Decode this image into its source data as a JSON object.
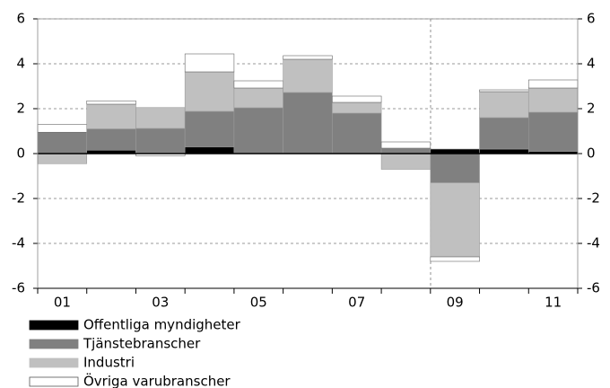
{
  "chart_data": {
    "type": "bar",
    "stacked": true,
    "categories": [
      "01",
      null,
      "03",
      null,
      "05",
      null,
      "07",
      null,
      "09",
      null,
      "11"
    ],
    "series": [
      {
        "name": "Offentliga myndigheter",
        "color": "#000000",
        "values": [
          0,
          0.15,
          0,
          0.3,
          0,
          0,
          0,
          0,
          0.2,
          0.2,
          0.1
        ]
      },
      {
        "name": "Tjänstebranscher",
        "color": "#808080",
        "values": [
          0.95,
          0.95,
          1.12,
          1.58,
          2.04,
          2.72,
          1.8,
          0.24,
          -1.3,
          1.4,
          1.74
        ]
      },
      {
        "name": "Industri",
        "color": "#c0c0c0",
        "values": [
          -0.45,
          1.1,
          0.93,
          1.76,
          0.88,
          1.48,
          0.48,
          -0.7,
          -3.3,
          1.16,
          1.08
        ]
      },
      {
        "name": "Övriga varubranscher",
        "color": "#ffffff",
        "values": [
          0.35,
          0.15,
          -0.1,
          0.8,
          0.32,
          0.16,
          0.28,
          0.28,
          -0.2,
          0.08,
          0.36
        ]
      }
    ],
    "ylim": [
      -6,
      6
    ],
    "yticks": [
      -6,
      -4,
      -2,
      0,
      2,
      4,
      6
    ],
    "grid": true
  }
}
